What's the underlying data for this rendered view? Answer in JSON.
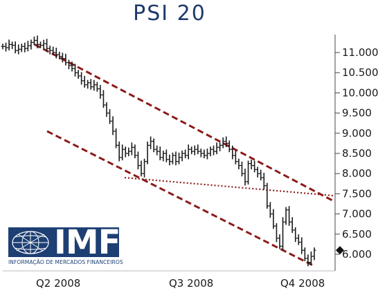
{
  "title": "PSI 20",
  "logo": {
    "name": "IMF",
    "subtitle": "INFORMAÇÃO DE MERCADOS FINANCEIROS"
  },
  "colors": {
    "title": "#1d3a6b",
    "price_bars": "#1a1a1a",
    "channel_lines": "#8b1a1a",
    "logo_background": "#1d3f73"
  },
  "chart_data": {
    "type": "ohlc",
    "title": "PSI 20",
    "x_tick_labels": [
      "Q2 2008",
      "Q3 2008",
      "Q4 2008"
    ],
    "y_tick_labels": [
      "11.000",
      "10.500",
      "10.000",
      "9.500",
      "9.000",
      "8.500",
      "8.000",
      "7.500",
      "7.000",
      "6.500",
      "6.000"
    ],
    "y_ticks": [
      11000,
      10500,
      10000,
      9500,
      9000,
      8500,
      8000,
      7500,
      7000,
      6500,
      6000
    ],
    "ylim": [
      5650,
      11450
    ],
    "grid": false,
    "y_axis_position": "right",
    "last_value_marker": 6100,
    "close_series": [
      11150,
      11120,
      11200,
      11180,
      11050,
      11080,
      11150,
      11100,
      11170,
      11250,
      11300,
      11200,
      11180,
      11220,
      11100,
      11050,
      11000,
      10950,
      10900,
      10850,
      10750,
      10680,
      10600,
      10500,
      10420,
      10300,
      10200,
      10250,
      10150,
      10200,
      10100,
      9950,
      9700,
      9500,
      9300,
      9050,
      8700,
      8400,
      8600,
      8500,
      8550,
      8650,
      8450,
      8200,
      8000,
      8300,
      8700,
      8800,
      8600,
      8550,
      8400,
      8500,
      8350,
      8300,
      8450,
      8300,
      8400,
      8500,
      8450,
      8600,
      8550,
      8600,
      8550,
      8500,
      8450,
      8500,
      8600,
      8550,
      8650,
      8700,
      8800,
      8750,
      8600,
      8450,
      8300,
      8200,
      8000,
      7800,
      8250,
      8200,
      8100,
      8000,
      7900,
      7700,
      7200,
      7000,
      6700,
      6400,
      6200,
      6800,
      7100,
      6800,
      6600,
      6400,
      6300,
      6100,
      5900,
      5800,
      5950,
      6100
    ],
    "channel_upper": {
      "x": [
        0.2,
        99.5
      ],
      "y": [
        11200,
        7300
      ]
    },
    "channel_lower": {
      "x": [
        2,
        99.5
      ],
      "y": [
        9050,
        5700
      ]
    },
    "trend_dotted": {
      "x": [
        0,
        99.5
      ],
      "y": [
        7900,
        7450
      ]
    }
  }
}
